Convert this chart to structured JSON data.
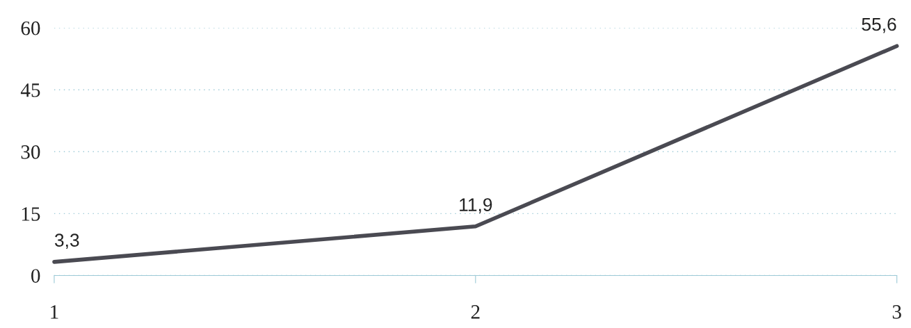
{
  "chart_data": {
    "type": "line",
    "categories": [
      "1",
      "2",
      "3"
    ],
    "series": [
      {
        "color": "#4a4a52",
        "values": [
          3.3,
          11.9,
          55.6
        ],
        "value_labels": [
          "3,3",
          "11,9",
          "55,6"
        ]
      }
    ],
    "ylim": [
      0,
      60
    ],
    "yticks": [
      0,
      15,
      30,
      45,
      60
    ],
    "grid": "y",
    "legend": false,
    "marker": "none",
    "line_style": "solid"
  }
}
